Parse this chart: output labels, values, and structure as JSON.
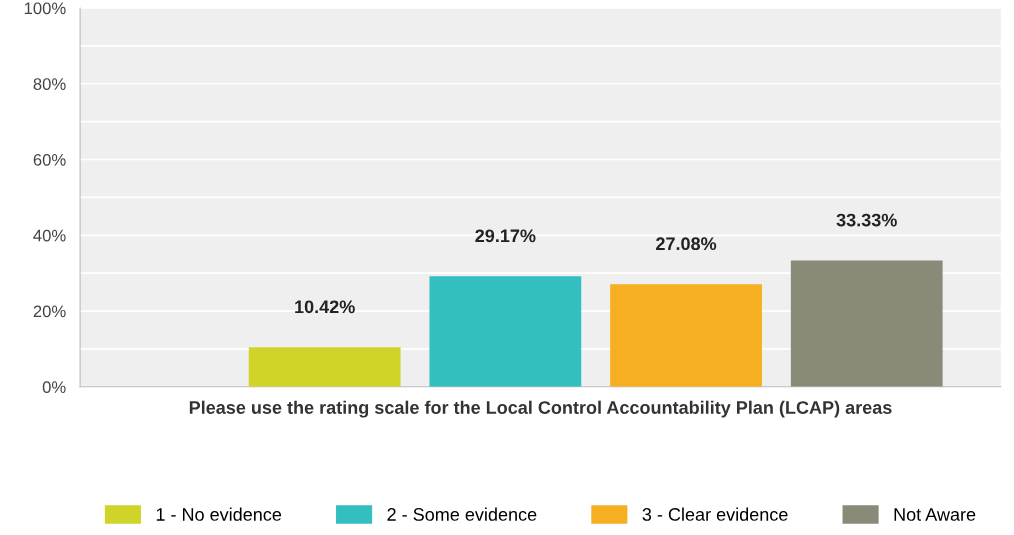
{
  "chart_data": {
    "type": "bar",
    "categories": [
      "Please use the rating scale for the Local Control Accountability Plan (LCAP) areas"
    ],
    "series": [
      {
        "name": "1 - No evidence",
        "color": "#d0d428",
        "values": [
          10.42
        ],
        "value_labels": [
          "10.42%"
        ]
      },
      {
        "name": "2 - Some evidence",
        "color": "#33bec0",
        "values": [
          29.17
        ],
        "value_labels": [
          "29.17%"
        ]
      },
      {
        "name": "3 - Clear evidence",
        "color": "#f5af20",
        "values": [
          27.08
        ],
        "value_labels": [
          "27.08%"
        ]
      },
      {
        "name": "Not Aware",
        "color": "#898a78",
        "values": [
          33.33
        ],
        "value_labels": [
          "33.33%"
        ]
      }
    ],
    "ylim": [
      0,
      100
    ],
    "yticks": [
      {
        "value": 0,
        "label": "0%"
      },
      {
        "value": 10,
        "label": null
      },
      {
        "value": 20,
        "label": "20%"
      },
      {
        "value": 30,
        "label": null
      },
      {
        "value": 40,
        "label": "40%"
      },
      {
        "value": 50,
        "label": null
      },
      {
        "value": 60,
        "label": "60%"
      },
      {
        "value": 70,
        "label": null
      },
      {
        "value": 80,
        "label": "80%"
      },
      {
        "value": 90,
        "label": null
      },
      {
        "value": 100,
        "label": "100%"
      }
    ],
    "grid": "y",
    "legend": "bottom"
  }
}
